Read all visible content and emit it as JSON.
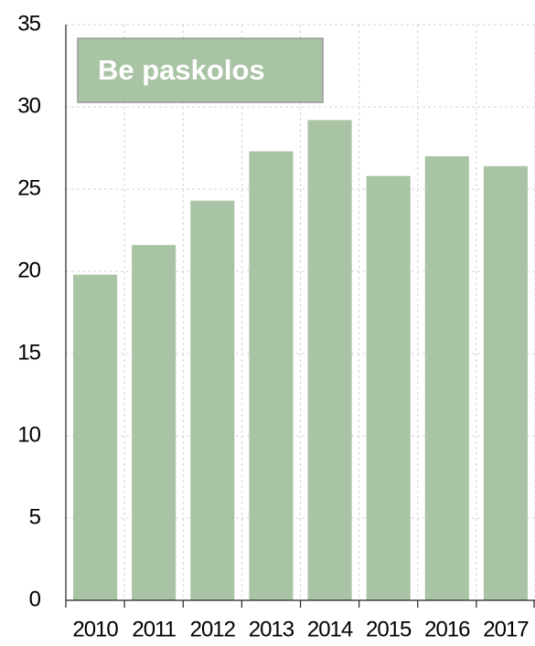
{
  "chart_data": {
    "type": "bar",
    "title": "Be paskolos",
    "categories": [
      "2010",
      "2011",
      "2012",
      "2013",
      "2014",
      "2015",
      "2016",
      "2017"
    ],
    "values": [
      19.8,
      21.6,
      24.3,
      27.3,
      29.2,
      25.8,
      27.0,
      26.4
    ],
    "color": "#a9c4a4",
    "ylim": [
      0,
      35
    ],
    "yticks": [
      0,
      5,
      10,
      15,
      20,
      25,
      30,
      35
    ],
    "grid": true
  }
}
